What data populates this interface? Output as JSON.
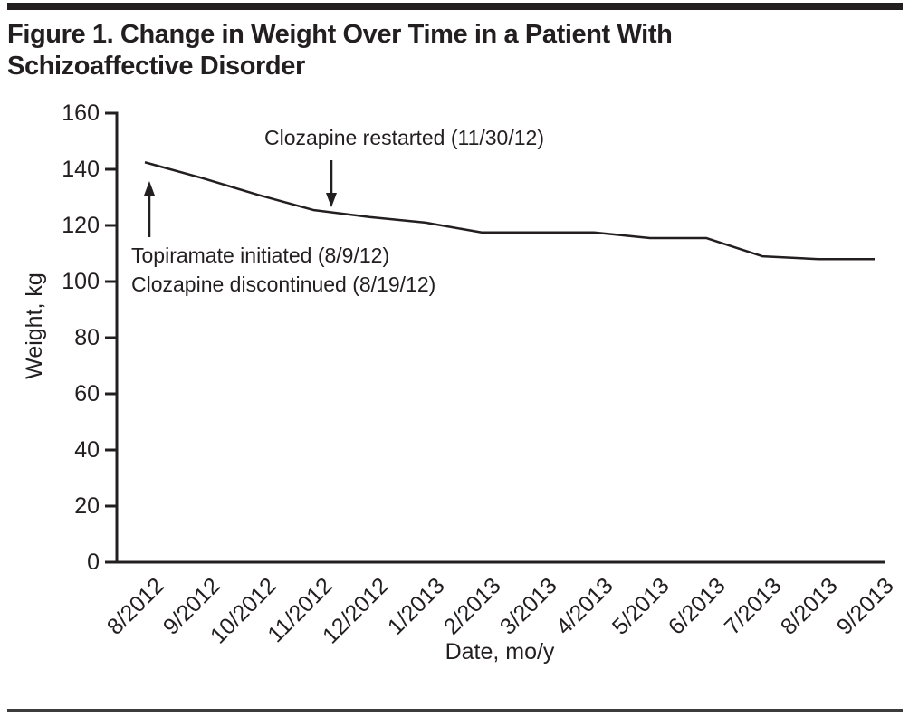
{
  "figure": {
    "title_line1": "Figure 1. Change in Weight Over Time in a Patient With",
    "title_line2": "Schizoaffective Disorder"
  },
  "chart_data": {
    "type": "line",
    "title": "Figure 1. Change in Weight Over Time in a Patient With Schizoaffective Disorder",
    "xlabel": "Date, mo/y",
    "ylabel": "Weight, kg",
    "ylim": [
      0,
      160
    ],
    "yticks": [
      0,
      20,
      40,
      60,
      80,
      100,
      120,
      140,
      160
    ],
    "categories": [
      "8/2012",
      "9/2012",
      "10/2012",
      "11/2012",
      "12/2012",
      "1/2013",
      "2/2013",
      "3/2013",
      "4/2013",
      "5/2013",
      "6/2013",
      "7/2013",
      "8/2013",
      "9/2013"
    ],
    "series": [
      {
        "name": "Weight, kg",
        "values": [
          142.5,
          137,
          131,
          125.5,
          123,
          121,
          117.5,
          117.5,
          117.5,
          115.5,
          115.5,
          109,
          108,
          108
        ]
      }
    ],
    "grid": false,
    "legend": "none",
    "line_color": "#231f20",
    "axis_color": "#231f20",
    "annotations": [
      {
        "text": "Topiramate initiated (8/9/12)",
        "arrow": "up",
        "at_category": "8/2012"
      },
      {
        "text": "Clozapine discontinued (8/19/12)",
        "arrow": "up",
        "at_category": "8/2012"
      },
      {
        "text": "Clozapine restarted (11/30/12)",
        "arrow": "down",
        "at_category": "11/2012"
      }
    ]
  }
}
